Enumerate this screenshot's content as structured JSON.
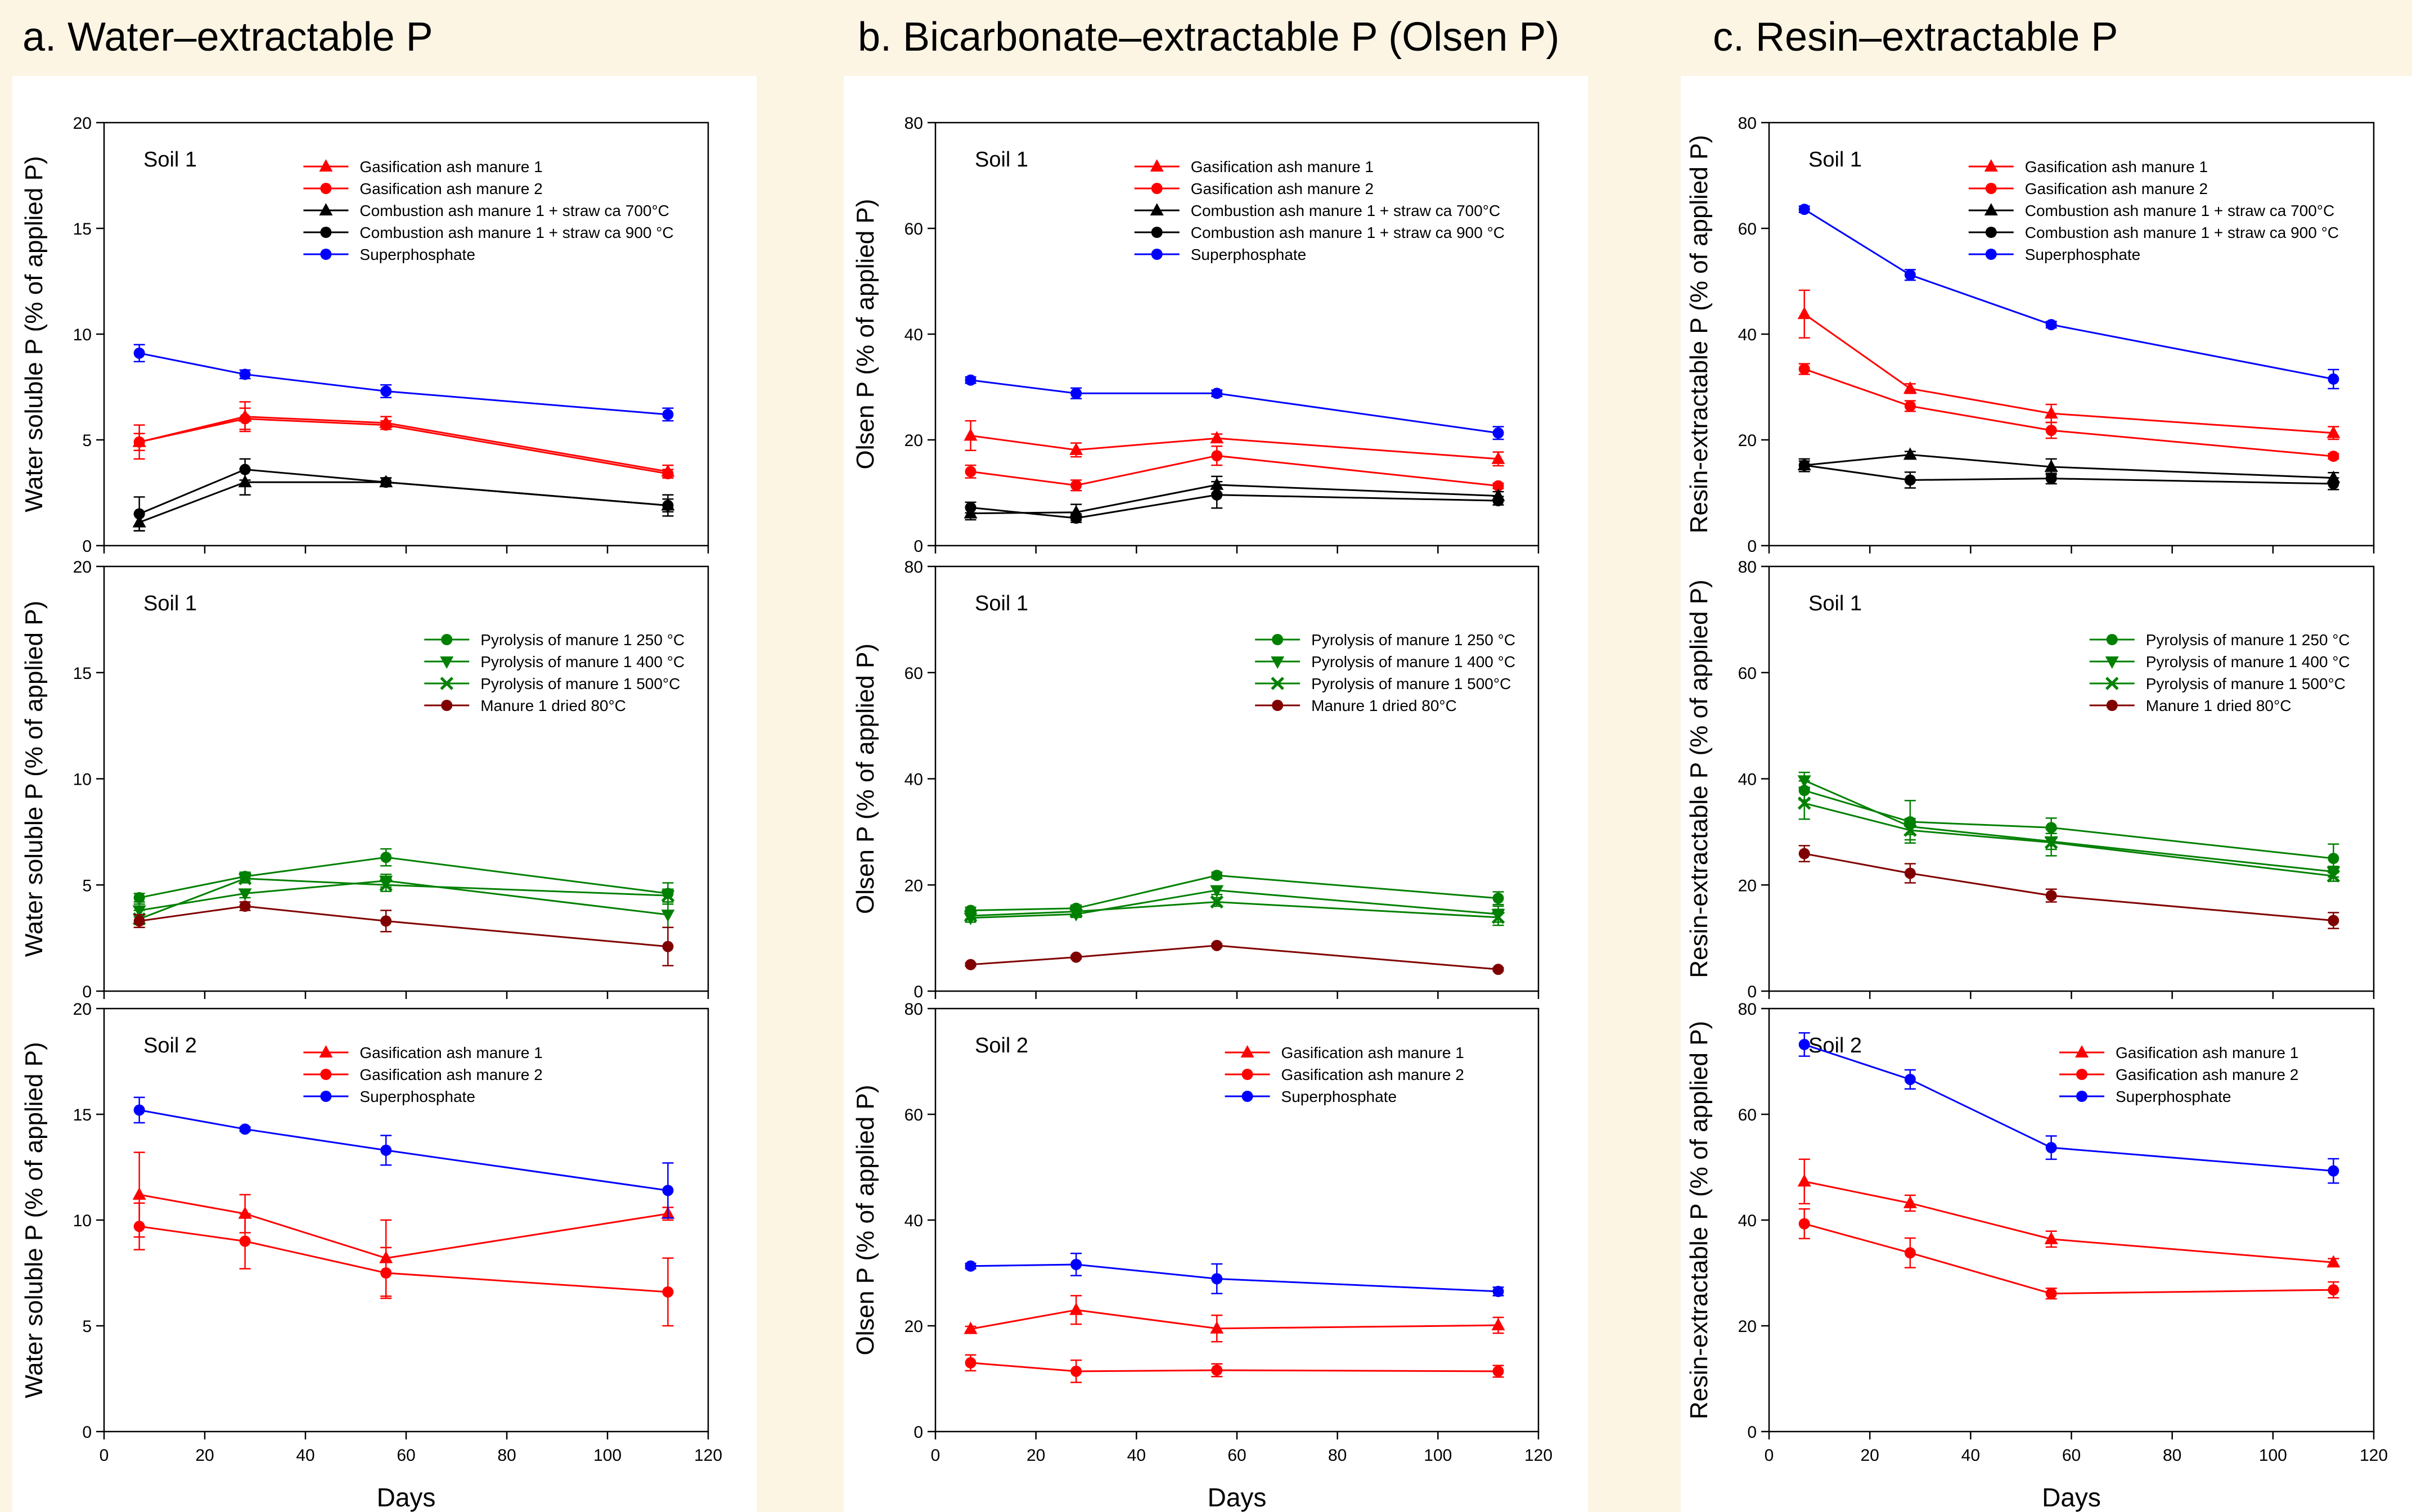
{
  "colors": {
    "background": "#fdf5e4",
    "panel_bg": "#ffffff",
    "red": "#ff0000",
    "black": "#000000",
    "blue": "#0000ff",
    "green": "#008000",
    "darkred": "#800000"
  },
  "columns": [
    {
      "title": "a. Water–extractable P",
      "ylabel": "Water soluble P (% of applied P)",
      "xlabel": "Days"
    },
    {
      "title": "b. Bicarbonate–extractable P (Olsen P)",
      "ylabel": "Olsen P (% of applied P)",
      "xlabel": "Days"
    },
    {
      "title": "c. Resin–extractable P",
      "ylabel": "Resin-extractable P (% of applied P)",
      "xlabel": "Days"
    }
  ],
  "chart_data": [
    {
      "type": "line",
      "column": 0,
      "row": 0,
      "soil_label": "Soil 1",
      "xlim": [
        0,
        120
      ],
      "ylim": [
        0,
        20
      ],
      "yticks": [
        0,
        5,
        10,
        15,
        20
      ],
      "xticks": [
        0,
        20,
        40,
        60,
        80,
        100,
        120
      ],
      "show_xticklabels": false,
      "x": [
        7,
        28,
        56,
        112
      ],
      "series": [
        {
          "name": "Gasification ash manure 1",
          "color": "red",
          "marker": "triangle-up",
          "values": [
            4.9,
            6.1,
            5.8,
            3.5
          ],
          "errors": [
            0.8,
            0.7,
            0.3,
            0.3
          ]
        },
        {
          "name": "Gasification ash manure 2",
          "color": "red",
          "marker": "circle",
          "values": [
            4.9,
            6.0,
            5.7,
            3.4
          ],
          "errors": [
            0.4,
            0.5,
            0.2,
            0.2
          ]
        },
        {
          "name": "Combustion ash manure 1 + straw ca 700°C",
          "color": "black",
          "marker": "triangle-up",
          "values": [
            1.1,
            3.0,
            3.0,
            1.9
          ],
          "errors": [
            0.4,
            0.6,
            0.2,
            0.5
          ]
        },
        {
          "name": "Combustion ash manure 1 + straw ca 900 °C",
          "color": "black",
          "marker": "circle",
          "values": [
            1.5,
            3.6,
            3.0,
            1.9
          ],
          "errors": [
            0.8,
            0.5,
            0.2,
            0.3
          ]
        },
        {
          "name": "Superphosphate",
          "color": "blue",
          "marker": "circle",
          "values": [
            9.1,
            8.1,
            7.3,
            6.2
          ],
          "errors": [
            0.4,
            0.2,
            0.3,
            0.3
          ]
        }
      ]
    },
    {
      "type": "line",
      "column": 0,
      "row": 1,
      "soil_label": "Soil 1",
      "xlim": [
        0,
        120
      ],
      "ylim": [
        0,
        20
      ],
      "yticks": [
        0,
        5,
        10,
        15,
        20
      ],
      "xticks": [
        0,
        20,
        40,
        60,
        80,
        100,
        120
      ],
      "show_xticklabels": false,
      "x": [
        7,
        28,
        56,
        112
      ],
      "series": [
        {
          "name": "Pyrolysis of manure 1 250 °C",
          "color": "green",
          "marker": "circle",
          "values": [
            4.4,
            5.4,
            6.3,
            4.6
          ],
          "errors": [
            0.2,
            0.2,
            0.4,
            0.5
          ]
        },
        {
          "name": "Pyrolysis of manure 1 400 °C",
          "color": "green",
          "marker": "triangle-down",
          "values": [
            3.8,
            4.6,
            5.2,
            3.6
          ],
          "errors": [
            0.3,
            0.2,
            0.3,
            0.6
          ]
        },
        {
          "name": "Pyrolysis of manure 1 500°C",
          "color": "green",
          "marker": "x",
          "values": [
            3.4,
            5.3,
            5.0,
            4.5
          ],
          "errors": [
            0.4,
            0.2,
            0.3,
            0.3
          ]
        },
        {
          "name": "Manure 1 dried 80°C",
          "color": "darkred",
          "marker": "circle",
          "values": [
            3.3,
            4.0,
            3.3,
            2.1
          ],
          "errors": [
            0.3,
            0.2,
            0.5,
            0.9
          ]
        }
      ]
    },
    {
      "type": "line",
      "column": 0,
      "row": 2,
      "soil_label": "Soil 2",
      "xlim": [
        0,
        120
      ],
      "ylim": [
        0,
        20
      ],
      "yticks": [
        0,
        5,
        10,
        15,
        20
      ],
      "xticks": [
        0,
        20,
        40,
        60,
        80,
        100,
        120
      ],
      "show_xticklabels": true,
      "x": [
        7,
        28,
        56,
        112
      ],
      "series": [
        {
          "name": "Gasification ash manure 1",
          "color": "red",
          "marker": "triangle-up",
          "values": [
            11.2,
            10.3,
            8.2,
            10.3
          ],
          "errors": [
            2.0,
            0.9,
            1.8,
            0.3
          ]
        },
        {
          "name": "Gasification ash manure 2",
          "color": "red",
          "marker": "circle",
          "values": [
            9.7,
            9.0,
            7.5,
            6.6
          ],
          "errors": [
            1.1,
            1.3,
            1.2,
            1.6
          ]
        },
        {
          "name": "Superphosphate",
          "color": "blue",
          "marker": "circle",
          "values": [
            15.2,
            14.3,
            13.3,
            11.4
          ],
          "errors": [
            0.6,
            0.1,
            0.7,
            1.3
          ]
        }
      ]
    },
    {
      "type": "line",
      "column": 1,
      "row": 0,
      "soil_label": "Soil 1",
      "xlim": [
        0,
        120
      ],
      "ylim": [
        0,
        80
      ],
      "yticks": [
        0,
        20,
        40,
        60,
        80
      ],
      "xticks": [
        0,
        20,
        40,
        60,
        80,
        100,
        120
      ],
      "show_xticklabels": false,
      "x": [
        7,
        28,
        56,
        112
      ],
      "series": [
        {
          "name": "Gasification ash manure 1",
          "color": "red",
          "marker": "triangle-up",
          "values": [
            20.8,
            18.1,
            20.3,
            16.4
          ],
          "errors": [
            2.8,
            1.3,
            0.8,
            1.3
          ]
        },
        {
          "name": "Gasification ash manure 2",
          "color": "red",
          "marker": "circle",
          "values": [
            14.0,
            11.4,
            17.0,
            11.3
          ],
          "errors": [
            1.2,
            1.0,
            1.8,
            0.5
          ]
        },
        {
          "name": "Combustion ash manure 1 + straw ca 700°C",
          "color": "black",
          "marker": "triangle-up",
          "values": [
            6.1,
            6.3,
            11.5,
            9.4
          ],
          "errors": [
            1.2,
            1.5,
            1.6,
            0.8
          ]
        },
        {
          "name": "Combustion ash manure 1 + straw ca 900 °C",
          "color": "black",
          "marker": "circle",
          "values": [
            7.2,
            5.2,
            9.6,
            8.5
          ],
          "errors": [
            1.0,
            0.8,
            2.5,
            0.8
          ]
        },
        {
          "name": "Superphosphate",
          "color": "blue",
          "marker": "circle",
          "values": [
            31.3,
            28.8,
            28.8,
            21.3
          ],
          "errors": [
            0.6,
            1.0,
            0.6,
            1.2
          ]
        }
      ]
    },
    {
      "type": "line",
      "column": 1,
      "row": 1,
      "soil_label": "Soil 1",
      "xlim": [
        0,
        120
      ],
      "ylim": [
        0,
        80
      ],
      "yticks": [
        0,
        20,
        40,
        60,
        80
      ],
      "xticks": [
        0,
        20,
        40,
        60,
        80,
        100,
        120
      ],
      "show_xticklabels": false,
      "x": [
        7,
        28,
        56,
        112
      ],
      "series": [
        {
          "name": "Pyrolysis of manure 1 250 °C",
          "color": "green",
          "marker": "circle",
          "values": [
            15.2,
            15.6,
            21.8,
            17.5
          ],
          "errors": [
            0.6,
            0.6,
            0.6,
            1.2
          ]
        },
        {
          "name": "Pyrolysis of manure 1 400 °C",
          "color": "green",
          "marker": "triangle-down",
          "values": [
            13.8,
            14.5,
            19.0,
            14.5
          ],
          "errors": [
            0.8,
            0.6,
            0.8,
            1.5
          ]
        },
        {
          "name": "Pyrolysis of manure 1 500°C",
          "color": "green",
          "marker": "x",
          "values": [
            14.2,
            15.0,
            16.8,
            13.9
          ],
          "errors": [
            0.6,
            0.6,
            0.8,
            1.5
          ]
        },
        {
          "name": "Manure 1 dried 80°C",
          "color": "darkred",
          "marker": "circle",
          "values": [
            5.0,
            6.4,
            8.6,
            4.1
          ],
          "errors": [
            0.3,
            0.3,
            0.3,
            0.3
          ]
        }
      ]
    },
    {
      "type": "line",
      "column": 1,
      "row": 2,
      "soil_label": "Soil 2",
      "xlim": [
        0,
        120
      ],
      "ylim": [
        0,
        80
      ],
      "yticks": [
        0,
        20,
        40,
        60,
        80
      ],
      "xticks": [
        0,
        20,
        40,
        60,
        80,
        100,
        120
      ],
      "show_xticklabels": true,
      "x": [
        7,
        28,
        56,
        112
      ],
      "series": [
        {
          "name": "Gasification ash manure 1",
          "color": "red",
          "marker": "triangle-up",
          "values": [
            19.4,
            23.0,
            19.5,
            20.1
          ],
          "errors": [
            0.5,
            2.7,
            2.5,
            1.5
          ]
        },
        {
          "name": "Gasification ash manure 2",
          "color": "red",
          "marker": "circle",
          "values": [
            13.0,
            11.4,
            11.6,
            11.4
          ],
          "errors": [
            1.5,
            2.1,
            1.2,
            1.1
          ]
        },
        {
          "name": "Superphosphate",
          "color": "blue",
          "marker": "circle",
          "values": [
            31.3,
            31.6,
            28.9,
            26.5
          ],
          "errors": [
            0.5,
            2.1,
            2.8,
            0.8
          ]
        }
      ]
    },
    {
      "type": "line",
      "column": 2,
      "row": 0,
      "soil_label": "Soil 1",
      "xlim": [
        0,
        120
      ],
      "ylim": [
        0,
        80
      ],
      "yticks": [
        0,
        20,
        40,
        60,
        80
      ],
      "xticks": [
        0,
        20,
        40,
        60,
        80,
        100,
        120
      ],
      "show_xticklabels": false,
      "x": [
        7,
        28,
        56,
        112
      ],
      "series": [
        {
          "name": "Gasification ash manure 1",
          "color": "red",
          "marker": "triangle-up",
          "values": [
            43.8,
            29.7,
            25.0,
            21.3
          ],
          "errors": [
            4.5,
            0.9,
            1.7,
            1.2
          ]
        },
        {
          "name": "Gasification ash manure 2",
          "color": "red",
          "marker": "circle",
          "values": [
            33.4,
            26.4,
            21.8,
            16.9
          ],
          "errors": [
            1.0,
            1.0,
            1.5,
            0.5
          ]
        },
        {
          "name": "Combustion ash manure 1 + straw ca 700°C",
          "color": "black",
          "marker": "triangle-up",
          "values": [
            15.2,
            17.2,
            14.9,
            12.8
          ],
          "errors": [
            1.2,
            0.6,
            1.5,
            1.0
          ]
        },
        {
          "name": "Combustion ash manure 1 + straw ca 900 °C",
          "color": "black",
          "marker": "circle",
          "values": [
            15.2,
            12.4,
            12.7,
            11.7
          ],
          "errors": [
            0.8,
            1.5,
            1.0,
            1.1
          ]
        },
        {
          "name": "Superphosphate",
          "color": "blue",
          "marker": "circle",
          "values": [
            63.6,
            51.2,
            41.8,
            31.5
          ],
          "errors": [
            0.6,
            1.0,
            0.6,
            1.8
          ]
        }
      ]
    },
    {
      "type": "line",
      "column": 2,
      "row": 1,
      "soil_label": "Soil 1",
      "xlim": [
        0,
        120
      ],
      "ylim": [
        0,
        80
      ],
      "yticks": [
        0,
        20,
        40,
        60,
        80
      ],
      "xticks": [
        0,
        20,
        40,
        60,
        80,
        100,
        120
      ],
      "show_xticklabels": false,
      "x": [
        7,
        28,
        56,
        112
      ],
      "series": [
        {
          "name": "Pyrolysis of manure 1 250 °C",
          "color": "green",
          "marker": "circle",
          "values": [
            37.8,
            31.9,
            30.8,
            25.0
          ],
          "errors": [
            1.8,
            4.0,
            1.8,
            2.7
          ]
        },
        {
          "name": "Pyrolysis of manure 1 400 °C",
          "color": "green",
          "marker": "triangle-down",
          "values": [
            39.7,
            31.0,
            28.2,
            22.5
          ],
          "errors": [
            1.5,
            1.5,
            1.5,
            1.0
          ]
        },
        {
          "name": "Pyrolysis of manure 1 500°C",
          "color": "green",
          "marker": "x",
          "values": [
            35.4,
            30.3,
            28.0,
            21.7
          ],
          "errors": [
            3.0,
            1.8,
            2.5,
            1.0
          ]
        },
        {
          "name": "Manure 1 dried 80°C",
          "color": "darkred",
          "marker": "circle",
          "values": [
            25.9,
            22.2,
            18.0,
            13.3
          ],
          "errors": [
            1.5,
            1.8,
            1.2,
            1.5
          ]
        }
      ]
    },
    {
      "type": "line",
      "column": 2,
      "row": 2,
      "soil_label": "Soil 2",
      "xlim": [
        0,
        120
      ],
      "ylim": [
        0,
        80
      ],
      "yticks": [
        0,
        20,
        40,
        60,
        80
      ],
      "xticks": [
        0,
        20,
        40,
        60,
        80,
        100,
        120
      ],
      "show_xticklabels": true,
      "x": [
        7,
        28,
        56,
        112
      ],
      "series": [
        {
          "name": "Gasification ash manure 1",
          "color": "red",
          "marker": "triangle-up",
          "values": [
            47.3,
            43.2,
            36.4,
            32.0
          ],
          "errors": [
            4.2,
            1.5,
            1.5,
            0.7
          ]
        },
        {
          "name": "Gasification ash manure 2",
          "color": "red",
          "marker": "circle",
          "values": [
            39.3,
            33.8,
            26.1,
            26.8
          ],
          "errors": [
            2.8,
            2.8,
            1.0,
            1.5
          ]
        },
        {
          "name": "Superphosphate",
          "color": "blue",
          "marker": "circle",
          "values": [
            73.2,
            66.6,
            53.7,
            49.3
          ],
          "errors": [
            2.2,
            1.8,
            2.2,
            2.3
          ]
        }
      ]
    }
  ]
}
